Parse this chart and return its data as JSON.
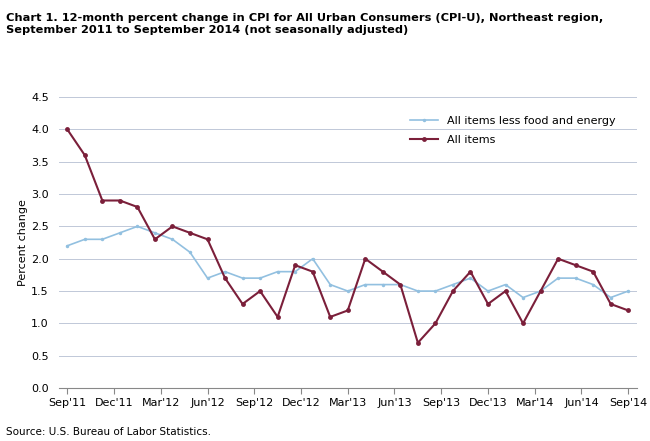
{
  "title": "Chart 1. 12-month percent change in CPI for All Urban Consumers (CPI-U), Northeast region,\nSeptember 2011 to September 2014 (not seasonally adjusted)",
  "ylabel": "Percent change",
  "source": "Source: U.S. Bureau of Labor Statistics.",
  "x_labels": [
    "Sep'11",
    "Dec'11",
    "Mar'12",
    "Jun'12",
    "Sep'12",
    "Dec'12",
    "Mar'13",
    "Jun'13",
    "Sep'13",
    "Dec'13",
    "Mar'14",
    "Jun'14",
    "Sep'14"
  ],
  "all_items": [
    4.0,
    3.6,
    2.9,
    2.9,
    2.8,
    2.3,
    2.5,
    2.4,
    2.3,
    1.7,
    1.3,
    1.5,
    1.1,
    1.9,
    1.8,
    1.1,
    1.2,
    2.0,
    1.8,
    1.6,
    0.7,
    1.0,
    1.5,
    1.8,
    1.3,
    1.5,
    1.0,
    1.5,
    2.0,
    1.9,
    1.8,
    1.3,
    1.2
  ],
  "all_items_less": [
    2.2,
    2.3,
    2.3,
    2.4,
    2.5,
    2.4,
    2.3,
    2.1,
    1.7,
    1.8,
    1.7,
    1.7,
    1.8,
    1.8,
    2.0,
    1.6,
    1.5,
    1.6,
    1.6,
    1.6,
    1.5,
    1.5,
    1.6,
    1.7,
    1.5,
    1.6,
    1.4,
    1.5,
    1.7,
    1.7,
    1.6,
    1.4,
    1.5
  ],
  "all_items_color": "#7B1F3A",
  "all_items_less_color": "#92C0E0",
  "ylim": [
    0.0,
    4.5
  ],
  "yticks": [
    0.0,
    0.5,
    1.0,
    1.5,
    2.0,
    2.5,
    3.0,
    3.5,
    4.0,
    4.5
  ],
  "grid_color": "#C0C8D8",
  "background_color": "#FFFFFF"
}
